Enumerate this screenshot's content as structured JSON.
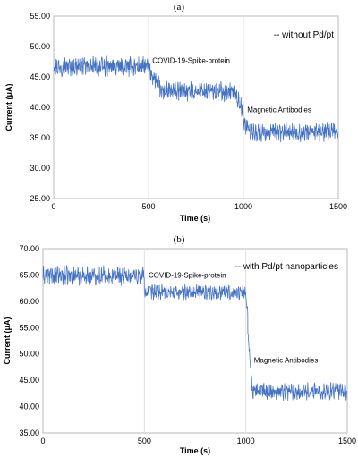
{
  "chart_data": [
    {
      "type": "line",
      "panel_label": "(a)",
      "xlabel": "Time (s)",
      "ylabel": "Current (μA)",
      "xlim": [
        0,
        1500
      ],
      "ylim": [
        25,
        55
      ],
      "x_ticks": [
        "0",
        "500",
        "1000",
        "1500"
      ],
      "y_ticks": [
        "25.00",
        "30.00",
        "35.00",
        "40.00",
        "45.00",
        "50.00",
        "55.00"
      ],
      "grid": "vertical",
      "legend": "-- without Pd/pt",
      "legend_placement": "top-right",
      "annotations": [
        {
          "text": "COVID-19-Spike-protein",
          "x": 520,
          "y": 47.3
        },
        {
          "text": "Magnetic Antibodies",
          "x": 1020,
          "y": 39.2
        }
      ],
      "series": [
        {
          "color": "#4472c4",
          "segments": [
            {
              "x_start": 0,
              "x_end": 500,
              "mean": 46.7,
              "amplitude": 1.5
            },
            {
              "x_start": 500,
              "x_end": 560,
              "mean_start": 46.2,
              "mean_end": 43.5,
              "amplitude": 1.4
            },
            {
              "x_start": 560,
              "x_end": 960,
              "mean": 42.6,
              "amplitude": 1.5
            },
            {
              "x_start": 960,
              "x_end": 1000,
              "mean_start": 42.0,
              "mean_end": 39.5,
              "amplitude": 1.4
            },
            {
              "x_start": 1000,
              "x_end": 1040,
              "mean_start": 37.5,
              "mean_end": 36.0,
              "amplitude": 1.4
            },
            {
              "x_start": 1040,
              "x_end": 1500,
              "mean": 35.9,
              "amplitude": 1.5
            }
          ]
        }
      ]
    },
    {
      "type": "line",
      "panel_label": "(b)",
      "xlabel": "Time (s)",
      "ylabel": "Current (μA)",
      "xlim": [
        0,
        1500
      ],
      "ylim": [
        35,
        70
      ],
      "x_ticks": [
        "0",
        "500",
        "1000",
        "1500"
      ],
      "y_ticks": [
        "35.00",
        "40.00",
        "45.00",
        "50.00",
        "55.00",
        "60.00",
        "65.00",
        "70.00"
      ],
      "grid": "vertical",
      "legend": "-- with Pd/pt nanoparticles",
      "legend_placement": "top-right",
      "annotations": [
        {
          "text": "COVID-19-Spike-protein",
          "x": 520,
          "y": 64.5
        },
        {
          "text": "Magnetic Antibodies",
          "x": 1040,
          "y": 48.3
        }
      ],
      "series": [
        {
          "color": "#4472c4",
          "segments": [
            {
              "x_start": 0,
              "x_end": 500,
              "mean": 64.9,
              "amplitude": 1.7
            },
            {
              "x_start": 500,
              "x_end": 1000,
              "mean": 61.7,
              "amplitude": 1.4
            },
            {
              "x_start": 1000,
              "x_end": 1010,
              "mean_start": 61.0,
              "mean_end": 57.5,
              "amplitude": 1.0
            },
            {
              "x_start": 1010,
              "x_end": 1030,
              "mean_start": 54.0,
              "mean_end": 45.0,
              "amplitude": 1.0
            },
            {
              "x_start": 1030,
              "x_end": 1500,
              "mean": 42.9,
              "amplitude": 1.5
            }
          ]
        }
      ]
    }
  ]
}
